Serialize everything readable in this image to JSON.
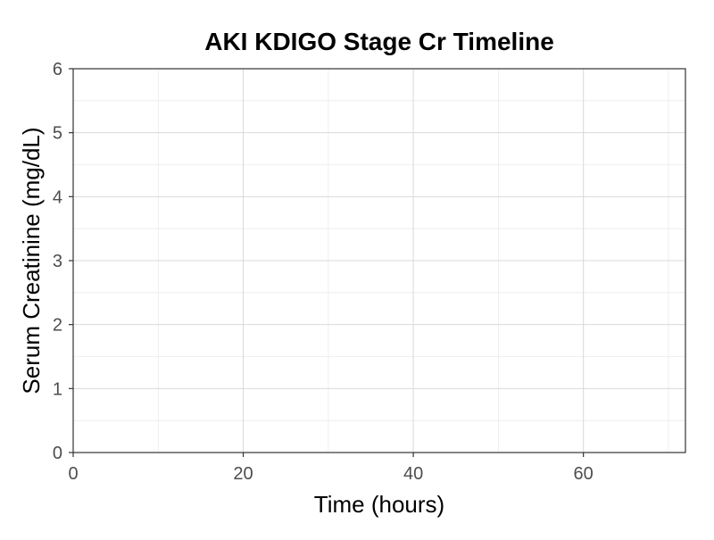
{
  "chart_data": {
    "type": "line",
    "title": "AKI KDIGO Stage Cr Timeline",
    "xlabel": "Time (hours)",
    "ylabel": "Serum Creatinine (mg/dL)",
    "xlim": [
      0,
      72
    ],
    "ylim": [
      0,
      6
    ],
    "x_ticks": [
      0,
      20,
      40,
      60
    ],
    "x_tick_labels": [
      "0",
      "20",
      "40",
      "60"
    ],
    "y_ticks": [
      0,
      1,
      2,
      3,
      4,
      5,
      6
    ],
    "y_tick_labels": [
      "0",
      "1",
      "2",
      "3",
      "4",
      "5",
      "6"
    ],
    "x_minor_ticks": [
      10,
      30,
      50,
      70
    ],
    "y_minor_ticks": [
      0.5,
      1.5,
      2.5,
      3.5,
      4.5,
      5.5
    ],
    "grid": true,
    "series": [],
    "colors": {
      "background": "#ffffff",
      "panel_border": "#333333",
      "grid_major": "#d9d9d9",
      "grid_minor": "#ebebeb",
      "tick_text": "#4d4d4d",
      "tick_mark": "#333333"
    }
  }
}
